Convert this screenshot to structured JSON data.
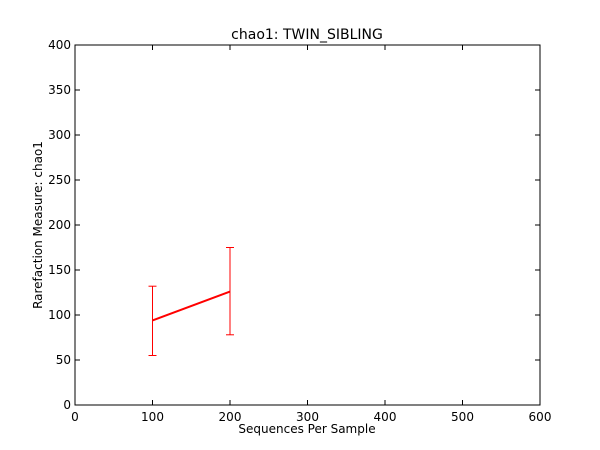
{
  "chart_data": {
    "type": "line",
    "title": "chao1: TWIN_SIBLING",
    "xlabel": "Sequences Per Sample",
    "ylabel": "Rarefaction Measure: chao1",
    "xlim": [
      0,
      600
    ],
    "ylim": [
      0,
      400
    ],
    "xticks": [
      "0",
      "100",
      "200",
      "300",
      "400",
      "500",
      "600"
    ],
    "yticks": [
      "0",
      "50",
      "100",
      "150",
      "200",
      "250",
      "300",
      "350",
      "400"
    ],
    "grid": false,
    "series": [
      {
        "color": "#ff0000",
        "x": [
          100,
          200
        ],
        "y": [
          94,
          126
        ],
        "err_low": [
          55,
          78
        ],
        "err_high": [
          132,
          175
        ]
      }
    ]
  }
}
